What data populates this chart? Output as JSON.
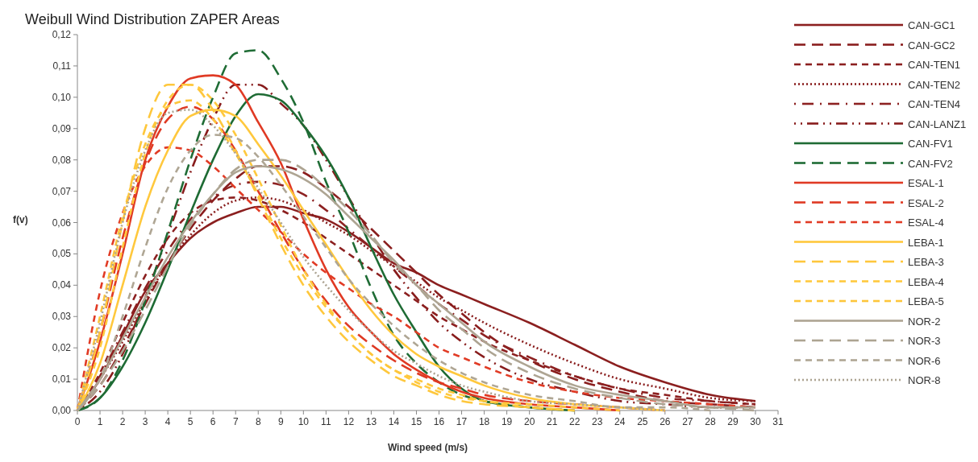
{
  "chart_data": {
    "type": "line",
    "title": "Weibull Wind Distribution ZAPER Areas",
    "xlabel": "Wind speed (m/s)",
    "ylabel": "f(v)",
    "x": [
      0,
      1,
      2,
      3,
      4,
      5,
      6,
      7,
      8,
      9,
      10,
      11,
      12,
      13,
      14,
      15,
      16,
      17,
      18,
      20,
      22,
      24,
      26,
      28,
      30
    ],
    "xlim": [
      0,
      31
    ],
    "xticks": [
      0,
      1,
      2,
      3,
      4,
      5,
      6,
      7,
      8,
      9,
      10,
      11,
      12,
      13,
      14,
      15,
      16,
      17,
      18,
      19,
      20,
      21,
      22,
      23,
      24,
      25,
      26,
      27,
      28,
      29,
      30,
      31
    ],
    "ylim": [
      0,
      0.12
    ],
    "yticks": [
      {
        "value": 0,
        "label": "0,00"
      },
      {
        "value": 0.01,
        "label": "0,01"
      },
      {
        "value": 0.02,
        "label": "0,02"
      },
      {
        "value": 0.03,
        "label": "0,03"
      },
      {
        "value": 0.04,
        "label": "0,04"
      },
      {
        "value": 0.05,
        "label": "0,05"
      },
      {
        "value": 0.06,
        "label": "0,06"
      },
      {
        "value": 0.07,
        "label": "0,07"
      },
      {
        "value": 0.08,
        "label": "0,08"
      },
      {
        "value": 0.09,
        "label": "0,09"
      },
      {
        "value": 0.1,
        "label": "0,10"
      },
      {
        "value": 0.11,
        "label": "0,11"
      },
      {
        "value": 0.12,
        "label": "0,12"
      }
    ],
    "grid": false,
    "legend": "right",
    "series": [
      {
        "name": "CAN-GC1",
        "color": "#8b1f1f",
        "line_style": "solid",
        "values": [
          0,
          0.01,
          0.024,
          0.038,
          0.047,
          0.055,
          0.06,
          0.063,
          0.065,
          0.065,
          0.063,
          0.061,
          0.057,
          0.052,
          0.047,
          0.044,
          0.04,
          0.037,
          0.034,
          0.028,
          0.021,
          0.014,
          0.009,
          0.005,
          0.003
        ]
      },
      {
        "name": "CAN-GC2",
        "color": "#8a1e1e",
        "line_style": "longdash",
        "values": [
          0,
          0.008,
          0.02,
          0.034,
          0.047,
          0.058,
          0.067,
          0.074,
          0.078,
          0.078,
          0.076,
          0.071,
          0.065,
          0.058,
          0.051,
          0.044,
          0.037,
          0.031,
          0.025,
          0.016,
          0.01,
          0.006,
          0.003,
          0.002,
          0.001
        ]
      },
      {
        "name": "CAN-TEN1",
        "color": "#8c2020",
        "line_style": "dashed",
        "values": [
          0,
          0.012,
          0.028,
          0.043,
          0.055,
          0.063,
          0.067,
          0.068,
          0.067,
          0.064,
          0.06,
          0.055,
          0.05,
          0.045,
          0.04,
          0.035,
          0.03,
          0.026,
          0.022,
          0.016,
          0.011,
          0.007,
          0.005,
          0.003,
          0.002
        ]
      },
      {
        "name": "CAN-TEN2",
        "color": "#891d1d",
        "line_style": "dotted",
        "values": [
          0,
          0.01,
          0.022,
          0.035,
          0.047,
          0.056,
          0.063,
          0.067,
          0.068,
          0.067,
          0.064,
          0.06,
          0.056,
          0.051,
          0.046,
          0.041,
          0.036,
          0.032,
          0.028,
          0.021,
          0.015,
          0.01,
          0.007,
          0.004,
          0.003
        ]
      },
      {
        "name": "CAN-TEN4",
        "color": "#8d2121",
        "line_style": "dashdot",
        "values": [
          0,
          0.011,
          0.025,
          0.039,
          0.051,
          0.061,
          0.068,
          0.072,
          0.073,
          0.072,
          0.069,
          0.064,
          0.058,
          0.052,
          0.046,
          0.04,
          0.034,
          0.029,
          0.024,
          0.017,
          0.011,
          0.007,
          0.004,
          0.003,
          0.002
        ]
      },
      {
        "name": "CAN-LANZ1",
        "color": "#881c1c",
        "line_style": "longdashdotdot",
        "values": [
          0,
          0.006,
          0.018,
          0.036,
          0.056,
          0.076,
          0.093,
          0.104,
          0.104,
          0.098,
          0.091,
          0.08,
          0.068,
          0.056,
          0.045,
          0.036,
          0.028,
          0.022,
          0.017,
          0.01,
          0.006,
          0.003,
          0.002,
          0.001,
          0.001
        ]
      },
      {
        "name": "CAN-FV1",
        "color": "#1e6b34",
        "line_style": "solid",
        "values": [
          0,
          0.004,
          0.014,
          0.028,
          0.045,
          0.063,
          0.08,
          0.094,
          0.101,
          0.099,
          0.091,
          0.081,
          0.068,
          0.052,
          0.037,
          0.025,
          0.014,
          0.007,
          0.003,
          0.001,
          0,
          null,
          null,
          null,
          null
        ]
      },
      {
        "name": "CAN-FV2",
        "color": "#1f6c35",
        "line_style": "longdash",
        "values": [
          0,
          0.004,
          0.016,
          0.035,
          0.057,
          0.08,
          0.1,
          0.114,
          0.115,
          0.106,
          0.092,
          0.073,
          0.057,
          0.039,
          0.024,
          0.015,
          0.009,
          0.005,
          0.003,
          0.001,
          0,
          null,
          null,
          null,
          null
        ]
      },
      {
        "name": "ESAL-1",
        "color": "#e03a24",
        "line_style": "solid",
        "values": [
          0,
          0.022,
          0.05,
          0.08,
          0.097,
          0.106,
          0.107,
          0.104,
          0.092,
          0.079,
          0.061,
          0.045,
          0.033,
          0.025,
          0.018,
          0.013,
          0.009,
          0.006,
          0.004,
          0.002,
          0.001,
          0,
          null,
          null,
          null
        ]
      },
      {
        "name": "ESAL-2",
        "color": "#df3923",
        "line_style": "longdash",
        "values": [
          0,
          0.025,
          0.055,
          0.079,
          0.093,
          0.097,
          0.093,
          0.083,
          0.07,
          0.057,
          0.045,
          0.035,
          0.027,
          0.021,
          0.016,
          0.012,
          0.009,
          0.007,
          0.005,
          0.003,
          0.002,
          0.001,
          0,
          null,
          null
        ]
      },
      {
        "name": "ESAL-4",
        "color": "#e13b25",
        "line_style": "dashed",
        "values": [
          0,
          0.038,
          0.063,
          0.078,
          0.084,
          0.083,
          0.078,
          0.071,
          0.064,
          0.057,
          0.05,
          0.044,
          0.039,
          0.034,
          0.03,
          0.025,
          0.02,
          0.017,
          0.014,
          0.009,
          0.006,
          0.004,
          0.003,
          0.002,
          0.001
        ]
      },
      {
        "name": "LEBA-1",
        "color": "#ffc83d",
        "line_style": "solid",
        "values": [
          0,
          0.015,
          0.04,
          0.065,
          0.083,
          0.094,
          0.096,
          0.094,
          0.085,
          0.075,
          0.064,
          0.053,
          0.042,
          0.032,
          0.024,
          0.018,
          0.014,
          0.011,
          0.008,
          0.004,
          0.002,
          0.001,
          0,
          null,
          null
        ]
      },
      {
        "name": "LEBA-3",
        "color": "#fec73c",
        "line_style": "longdash",
        "values": [
          0,
          0.025,
          0.06,
          0.09,
          0.104,
          0.104,
          0.096,
          0.083,
          0.068,
          0.053,
          0.04,
          0.03,
          0.022,
          0.016,
          0.011,
          0.008,
          0.005,
          0.003,
          0.002,
          0.001,
          0,
          null,
          null,
          null,
          null
        ]
      },
      {
        "name": "LEBA-4",
        "color": "#ffc93e",
        "line_style": "dashed",
        "values": [
          0,
          0.02,
          0.052,
          0.082,
          0.099,
          0.104,
          0.099,
          0.088,
          0.074,
          0.059,
          0.045,
          0.034,
          0.025,
          0.018,
          0.013,
          0.009,
          0.006,
          0.004,
          0.003,
          0.001,
          0,
          null,
          null,
          null,
          null
        ]
      },
      {
        "name": "LEBA-5",
        "color": "#fdc63b",
        "line_style": "dashed",
        "values": [
          0,
          0.03,
          0.062,
          0.085,
          0.097,
          0.099,
          0.093,
          0.082,
          0.069,
          0.055,
          0.043,
          0.033,
          0.025,
          0.018,
          0.013,
          0.01,
          0.007,
          0.005,
          0.003,
          0.002,
          0.001,
          0,
          null,
          null,
          null
        ]
      },
      {
        "name": "NOR-2",
        "color": "#aea593",
        "line_style": "solid",
        "values": [
          0,
          0.01,
          0.023,
          0.036,
          0.049,
          0.06,
          0.069,
          0.076,
          0.078,
          0.077,
          0.074,
          0.069,
          0.062,
          0.055,
          0.048,
          0.04,
          0.034,
          0.028,
          0.022,
          0.014,
          0.008,
          0.005,
          0.003,
          0.001,
          0.001
        ]
      },
      {
        "name": "NOR-3",
        "color": "#ada492",
        "line_style": "longdash",
        "values": [
          0,
          0.008,
          0.019,
          0.032,
          0.046,
          0.059,
          0.069,
          0.077,
          0.08,
          0.08,
          0.077,
          0.071,
          0.064,
          0.056,
          0.047,
          0.04,
          0.032,
          0.026,
          0.02,
          0.012,
          0.007,
          0.004,
          0.002,
          0.001,
          0
        ]
      },
      {
        "name": "NOR-6",
        "color": "#afa694",
        "line_style": "dashed",
        "values": [
          0,
          0.01,
          0.03,
          0.052,
          0.071,
          0.083,
          0.088,
          0.087,
          0.081,
          0.072,
          0.062,
          0.052,
          0.042,
          0.034,
          0.027,
          0.021,
          0.016,
          0.012,
          0.009,
          0.005,
          0.003,
          0.001,
          0.001,
          0,
          null
        ]
      },
      {
        "name": "NOR-8",
        "color": "#aca391",
        "line_style": "dotted",
        "values": [
          0,
          0.028,
          0.06,
          0.083,
          0.095,
          0.096,
          0.091,
          0.082,
          0.071,
          0.06,
          0.049,
          0.04,
          0.032,
          0.025,
          0.019,
          0.015,
          0.011,
          0.008,
          0.006,
          0.003,
          0.002,
          0.001,
          0,
          null,
          null
        ]
      }
    ]
  }
}
